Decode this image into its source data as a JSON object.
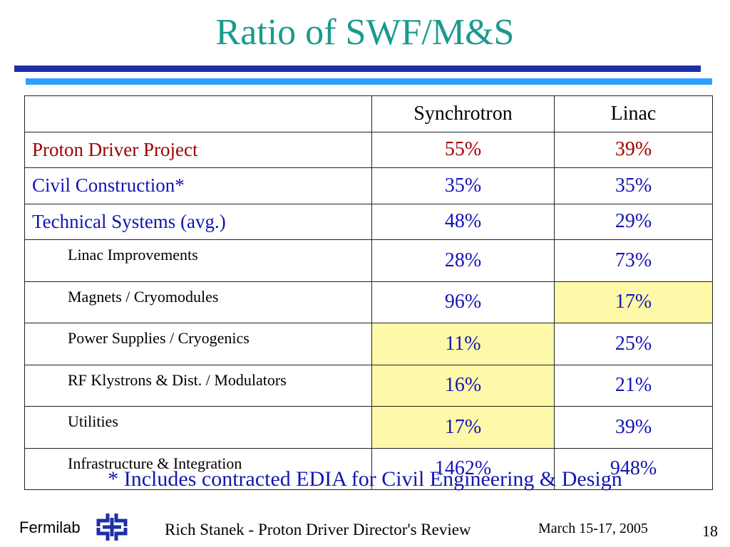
{
  "slide": {
    "title": "Ratio of SWF/M&S",
    "footnote": "* Includes contracted EDIA for Civil Engineering & Design"
  },
  "table": {
    "columns": [
      "Synchrotron",
      "Linac"
    ],
    "rows": [
      {
        "label": "Proton Driver Project",
        "synchrotron": "55%",
        "linac": "39%"
      },
      {
        "label": "Civil Construction*",
        "synchrotron": "35%",
        "linac": "35%"
      },
      {
        "label": "Technical Systems (avg.)",
        "synchrotron": "48%",
        "linac": "29%"
      },
      {
        "label": "Linac Improvements",
        "synchrotron": "28%",
        "linac": "73%"
      },
      {
        "label": "Magnets / Cryomodules",
        "synchrotron": "96%",
        "linac": "17%"
      },
      {
        "label": "Power Supplies / Cryogenics",
        "synchrotron": "11%",
        "linac": "25%"
      },
      {
        "label": "RF Klystrons & Dist. / Modulators",
        "synchrotron": "16%",
        "linac": "21%"
      },
      {
        "label": "Utilities",
        "synchrotron": "17%",
        "linac": "39%"
      },
      {
        "label": "Infrastructure & Integration",
        "synchrotron": "1462%",
        "linac": "948%"
      }
    ]
  },
  "footer": {
    "org": "Fermilab",
    "presenter": "Rich Stanek  - Proton Driver Director's Review",
    "date": "March 15-17, 2005",
    "page": "18"
  },
  "colors": {
    "title": "#1a9a8c",
    "text_blue": "#1414b4",
    "text_red": "#a00000",
    "highlight": "#fdf9a8",
    "rule_dark": "#1f2fa8",
    "rule_light": "#2f9fff"
  },
  "icons": {
    "logo": "fermilab-logo-icon"
  }
}
